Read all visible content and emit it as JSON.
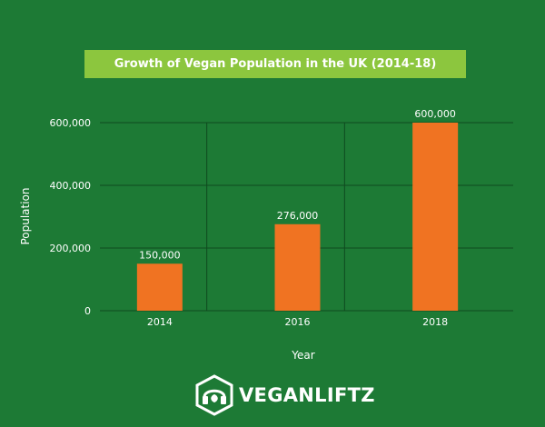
{
  "chart_data": {
    "type": "bar",
    "title": "Growth of Vegan Population in the UK (2014-18)",
    "xlabel": "Year",
    "ylabel": "Population",
    "categories": [
      "2014",
      "2016",
      "2018"
    ],
    "values": [
      150000,
      276000,
      600000
    ],
    "data_labels": [
      "150,000",
      "276,000",
      "600,000"
    ],
    "yticks": [
      0,
      200000,
      400000,
      600000
    ],
    "ytick_labels": [
      "0",
      "200,000",
      "400,000",
      "600,000"
    ],
    "ylim": [
      0,
      600000
    ],
    "grid": true,
    "bar_color": "#f07322",
    "grid_color": "#0f4a1f"
  },
  "colors": {
    "background": "#1d7a35",
    "title_banner": "#8cc63e",
    "text": "#ffffff"
  },
  "brand": {
    "name": "VEGANLIFTZ"
  }
}
